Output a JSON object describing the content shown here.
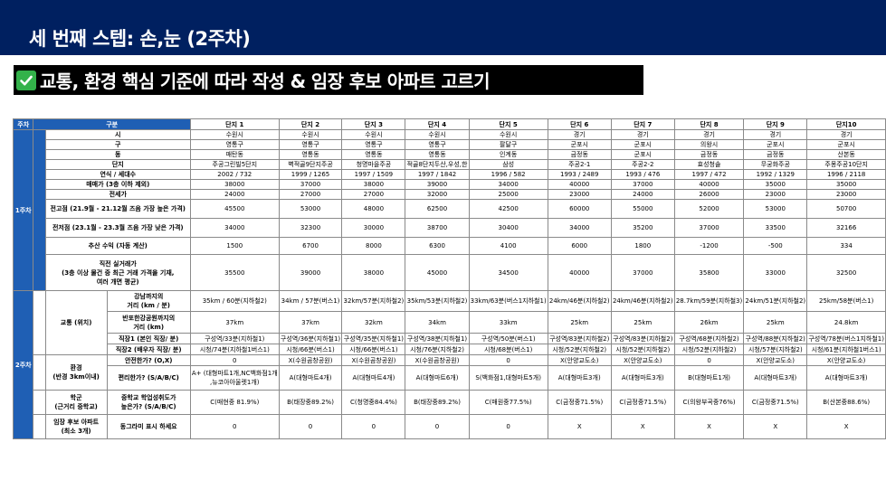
{
  "title": "세 번째 스텝: 손,눈 (2주차)",
  "subtitle": "교통, 환경 핵심 기준에 따라 작성 & 임장 후보 아파트 고르기",
  "check_icon": "check-mark-icon",
  "colors": {
    "navy": "#002060",
    "blue": "#1f5fb4",
    "check": "#33b24a"
  },
  "header": {
    "week": "주차",
    "category": "구분",
    "complexes": [
      "단지 1",
      "단지 2",
      "단지 3",
      "단지 4",
      "단지 5",
      "단지 6",
      "단지 7",
      "단지 8",
      "단지 9",
      "단지10"
    ]
  },
  "week1": {
    "label": "1주차",
    "rows": [
      {
        "label": "시",
        "values": [
          "수원시",
          "수원시",
          "수원시",
          "수원시",
          "수원시",
          "경기",
          "경기",
          "경기",
          "경기",
          "경기"
        ]
      },
      {
        "label": "구",
        "values": [
          "영통구",
          "영통구",
          "영통구",
          "영통구",
          "팔달구",
          "군포시",
          "군포시",
          "의왕시",
          "군포시",
          "군포시"
        ]
      },
      {
        "label": "동",
        "values": [
          "매탄동",
          "영통동",
          "영통동",
          "영통동",
          "인계동",
          "금정동",
          "군포시",
          "금정동",
          "금정동",
          "산본동"
        ]
      },
      {
        "label": "단지",
        "values": [
          "주공그린빌5단지",
          "벽적골9단지주공",
          "청명마을주공",
          "적골8단지두산,우성,한",
          "삼성",
          "주공2-1",
          "주공2-2",
          "효성청솔",
          "무궁화주공",
          "주몽주공10단지"
        ]
      },
      {
        "label": "연식 / 세대수",
        "values": [
          "2002 / 732",
          "1999 / 1265",
          "1997 / 1509",
          "1997 / 1842",
          "1996 / 582",
          "1993 / 2489",
          "1993 / 476",
          "1997 / 472",
          "1992 / 1329",
          "1996 / 2118"
        ]
      },
      {
        "label": "매매가 (3층 이하 제외)",
        "values": [
          "38000",
          "37000",
          "38000",
          "39000",
          "34000",
          "40000",
          "37000",
          "40000",
          "35000",
          "35000"
        ]
      },
      {
        "label": "전세가",
        "values": [
          "24000",
          "27000",
          "27000",
          "32000",
          "25000",
          "23000",
          "24000",
          "26000",
          "23000",
          "23000"
        ]
      },
      {
        "label": "전고점 (21.9월 - 21.12월 즈음 가장 높은 가격)",
        "values": [
          "45500",
          "53000",
          "48000",
          "62500",
          "42500",
          "60000",
          "55000",
          "52000",
          "53000",
          "50700"
        ]
      },
      {
        "label": "전저점 (23.1월 - 23.3월 즈음 가장 낮은 가격)",
        "values": [
          "34000",
          "32300",
          "30000",
          "38700",
          "30400",
          "34000",
          "35200",
          "37000",
          "33500",
          "32166"
        ]
      },
      {
        "label": "추산 수익 (자동 계산)",
        "values": [
          "1500",
          "6700",
          "8000",
          "6300",
          "4100",
          "6000",
          "1800",
          "-1200",
          "-500",
          "334"
        ]
      },
      {
        "label_lines": [
          "직전 실거래가",
          "(3층 이상 물건 중 최근 거래 가격을 기재,",
          "여러 개면 평균)"
        ],
        "values": [
          "35500",
          "39000",
          "38000",
          "45000",
          "34500",
          "40000",
          "37000",
          "35800",
          "33000",
          "32500"
        ]
      }
    ]
  },
  "week2": {
    "label": "2주차",
    "traffic": {
      "label": "교통 (위치)",
      "rows": [
        {
          "label_lines": [
            "강남까지의",
            "거리 (km / 분)"
          ],
          "values": [
            "35km / 60분(지하철2)",
            "34km / 57분(버스1)",
            "32km/57분(지하철2)",
            "35km/53분(지하철2)",
            "33km/63분(버스1지하철1)",
            "24km/46분(지하철2)",
            "24km/46분(지하철2)",
            "28.7km/59분(지하철3)",
            "24km/51분(지하철2)",
            "25km/58분(버스1)"
          ]
        },
        {
          "label_lines": [
            "반포한강공원까지의",
            "거리 (km)"
          ],
          "values": [
            "37km",
            "37km",
            "32km",
            "34km",
            "33km",
            "25km",
            "25km",
            "26km",
            "25km",
            "24.8km"
          ]
        },
        {
          "label": "직장1 (본인 직장/ 분)",
          "values": [
            "구성역/33분(지하철1)",
            "구성역/36분(지하철1)",
            "구성역/35분(지하철1)",
            "구성역/38분(지하철1)",
            "구성역/50분(버스1)",
            "구성역/83분(지하철2)",
            "구성역/83분(지하철2)",
            "구성역/68분(지하철2)",
            "구성역/88분(지하철2)",
            "구성역/78분(버스1지하철1)"
          ]
        },
        {
          "label": "직장2 (배우자 직장/ 분)",
          "values": [
            "시청/74분(지하철1버스1)",
            "시청/66분(버스1)",
            "시청/66분(버스1)",
            "시청/76분(지하철2)",
            "시청/68분(버스1)",
            "시청/52분(지하철2)",
            "시청/52분(지하철2)",
            "시청/52분(지하철2)",
            "시청/57분(지하철2)",
            "시청/61분(지하철1버스1)"
          ]
        }
      ]
    },
    "environment": {
      "label_lines": [
        "환경",
        "(반경 3km이내)"
      ],
      "rows": [
        {
          "label": "안전한가? (O,X)",
          "values": [
            "0",
            "X(수원곰창공원)",
            "X(수원곰창공원)",
            "X(수원곰창공원)",
            "0",
            "X(안양교도소)",
            "X(안양교도소)",
            "0",
            "X(안양교도소)",
            "X(안양교도소)"
          ]
        },
        {
          "label": "편리한가? (S/A/B/C)",
          "values": [
            "A+ (대형마트1개,NC백화점1개,뉴코아아울렛1개)",
            "A(대형마트4개)",
            "A(대형마트4개)",
            "A(대형마트6개)",
            "S(백화점1,대형마트5개)",
            "A(대형마트3개)",
            "A(대형마트3개)",
            "B(대형마트1개)",
            "A(대형마트3개)",
            "A(대형마트3개)"
          ]
        }
      ]
    },
    "school": {
      "label_lines": [
        "학군",
        "(근거리 중학교)"
      ],
      "question_lines": [
        "중학교 학업성취도가",
        "높은가? (S/A/B/C)"
      ],
      "values": [
        "C(매현중 81.9%)",
        "B(태장중89.2%)",
        "C(청명중84.4%)",
        "B(태장중89.2%)",
        "C(매원중77.5%)",
        "C(금정중71.5%)",
        "C(금정중71.5%)",
        "C(의왕부곡중76%)",
        "C(금정중71.5%)",
        "B(산본중88.6%)"
      ]
    },
    "candidate": {
      "label_lines": [
        "임장 후보 아파트",
        "(최소 3개)"
      ],
      "question": "동그라미 표시 하세요",
      "values": [
        "0",
        "0",
        "0",
        "0",
        "0",
        "X",
        "X",
        "X",
        "X",
        "X"
      ]
    }
  }
}
